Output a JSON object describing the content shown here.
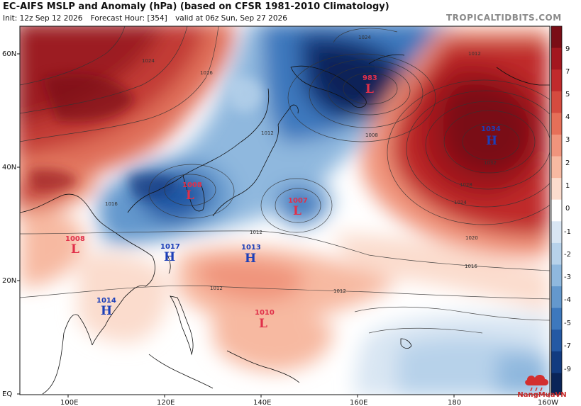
{
  "header": {
    "title": "EC-AIFS MSLP and Anomaly (hPa) (based on CFSR 1981-2010 Climatology)",
    "init": "Init: 12z Sep 12 2026",
    "forecast_hour": "Forecast Hour: [354]",
    "valid": "valid at 06z Sun, Sep 27 2026",
    "brand": "TROPICALTIDBITS.COM"
  },
  "map": {
    "latitude_labels": [
      "60N",
      "40N",
      "20N",
      "EQ"
    ],
    "longitude_labels": [
      "100E",
      "120E",
      "140E",
      "160E",
      "180",
      "160W"
    ],
    "isobar_labels": [
      "1024",
      "1012",
      "1016",
      "1012",
      "1012",
      "1012",
      "1016",
      "1020",
      "1024",
      "1028",
      "1032",
      "1008",
      "1012",
      "1024",
      "1016"
    ],
    "pressure_centers": [
      {
        "type": "L",
        "value": "983",
        "color": "#e0304a"
      },
      {
        "type": "H",
        "value": "1034",
        "color": "#1c3fb8"
      },
      {
        "type": "L",
        "value": "1008",
        "color": "#e0304a"
      },
      {
        "type": "L",
        "value": "1007",
        "color": "#e0304a"
      },
      {
        "type": "L",
        "value": "1008",
        "color": "#e0304a"
      },
      {
        "type": "H",
        "value": "1017",
        "color": "#1c3fb8"
      },
      {
        "type": "H",
        "value": "1013",
        "color": "#1c3fb8"
      },
      {
        "type": "H",
        "value": "1014",
        "color": "#1c3fb8"
      },
      {
        "type": "L",
        "value": "1010",
        "color": "#e0304a"
      }
    ]
  },
  "colorbar": {
    "labels": [
      "9",
      "7",
      "5",
      "4",
      "3",
      "2",
      "1",
      "0",
      "-1",
      "-2",
      "-3",
      "-4",
      "-5",
      "-7",
      "-9"
    ],
    "colors": [
      "#7a0d16",
      "#a3171f",
      "#c02b2c",
      "#d54b3f",
      "#e66f58",
      "#f0947c",
      "#f7b9a1",
      "#fbdccd",
      "#ffffff",
      "#d9e6f3",
      "#b7d2ea",
      "#8fb8de",
      "#6498cd",
      "#3d78bd",
      "#2459a4",
      "#123b80",
      "#0a2458"
    ]
  },
  "logo": {
    "text": "NangMuaVN"
  }
}
